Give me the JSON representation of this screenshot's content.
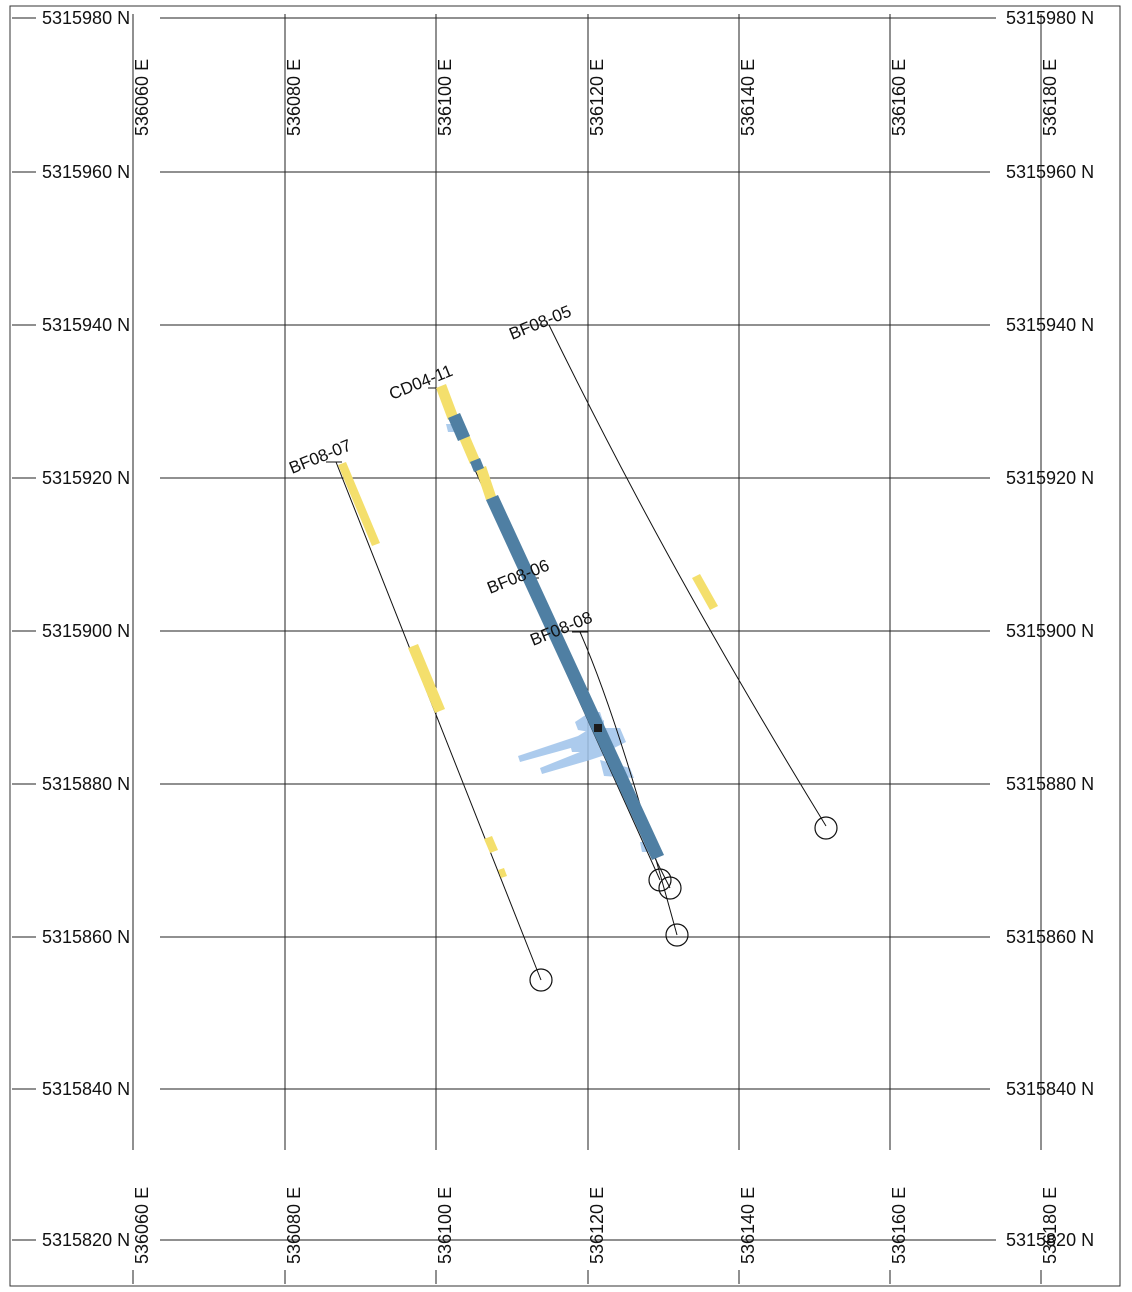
{
  "map": {
    "easting_labels": [
      "536060 E",
      "536080 E",
      "536100 E",
      "536120 E",
      "536140 E",
      "536160 E",
      "536180 E"
    ],
    "northing_left_labels": [
      "5315980 N",
      "5315960 N",
      "5315940 N",
      "5315920 N",
      "5315900 N",
      "5315880 N",
      "5315860 N",
      "5315840 N",
      "5315820 N"
    ],
    "northing_right_labels": [
      "5315980 N",
      "5315960 N",
      "5315940 N",
      "5315920 N",
      "5315900 N",
      "5315880 N",
      "5315860 N",
      "5315840 N",
      "5315820 N"
    ],
    "colors": {
      "grid": "#222222",
      "trace": "#111111",
      "intercept_yellow": "#f4df6c",
      "intercept_blue": "#4f7fa3",
      "halo_blue": "#9ec3ea"
    },
    "drill_holes": [
      {
        "id": "BF08-07",
        "collar": [
          536088,
          5315922
        ],
        "toe": [
          536114,
          5315854
        ]
      },
      {
        "id": "CD04-11",
        "collar": [
          536100.5,
          5315932
        ],
        "toe": [
          536130,
          5315870
        ]
      },
      {
        "id": "BF08-05",
        "collar": [
          536115.5,
          5315940
        ],
        "toe": [
          536152,
          5315874
        ]
      },
      {
        "id": "BF08-06",
        "collar": [
          536112.5,
          5315907
        ],
        "toe": [
          536131,
          5315866
        ]
      },
      {
        "id": "BF08-08",
        "collar": [
          536119,
          5315899
        ],
        "toe": [
          536132,
          5315860
        ]
      }
    ]
  }
}
